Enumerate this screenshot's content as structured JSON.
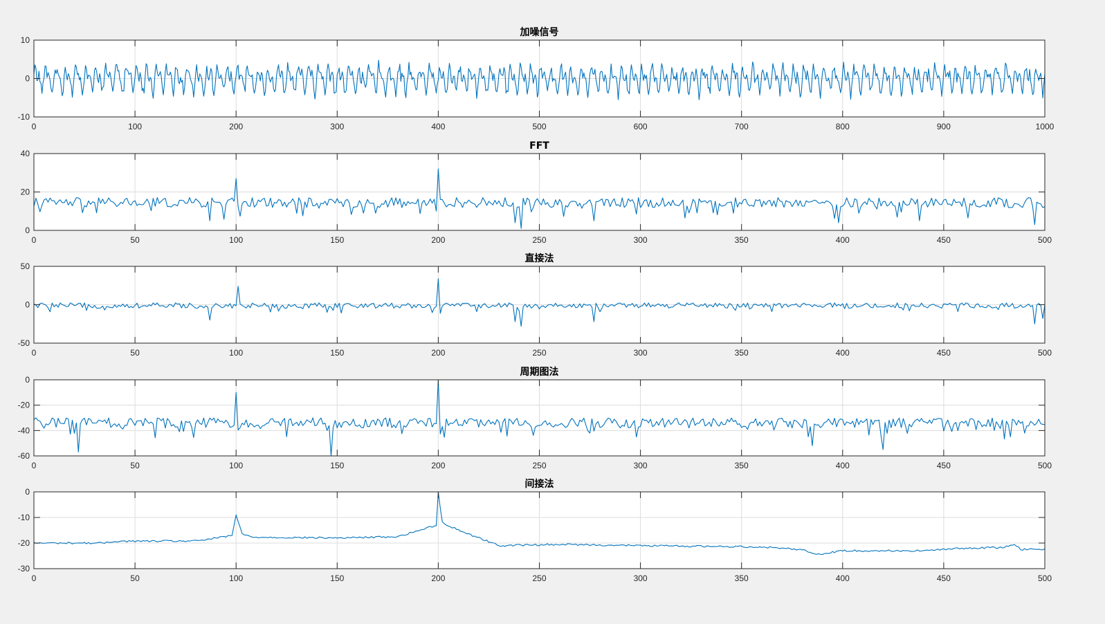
{
  "figure": {
    "background": "#f0f0f0",
    "line_color": "#0072bd"
  },
  "chart_data": [
    {
      "type": "line",
      "title": "加噪信号",
      "xlim": [
        0,
        1000
      ],
      "ylim": [
        -10,
        10
      ],
      "xticks": [
        0,
        100,
        200,
        300,
        400,
        500,
        600,
        700,
        800,
        900,
        1000
      ],
      "yticks": [
        -10,
        0,
        10
      ],
      "grid": true,
      "series": [
        {
          "kind": "noisy_sinusoid",
          "n": 1000,
          "x_range": [
            0,
            1000
          ],
          "amplitude_range": [
            -5.5,
            6
          ]
        }
      ]
    },
    {
      "type": "line",
      "title": "FFT",
      "xlim": [
        0,
        500
      ],
      "ylim": [
        0,
        40
      ],
      "xticks": [
        0,
        50,
        100,
        150,
        200,
        250,
        300,
        350,
        400,
        450,
        500
      ],
      "yticks": [
        0,
        20,
        40
      ],
      "grid": true,
      "series": [
        {
          "kind": "spectrum",
          "n": 500,
          "baseline": 14.5,
          "noise": 2.6,
          "peaks": [
            {
              "x": 100,
              "y": 27
            },
            {
              "x": 200,
              "y": 32
            }
          ],
          "dips": [
            {
              "x": 87,
              "y": 5
            },
            {
              "x": 238,
              "y": 4
            },
            {
              "x": 241,
              "y": 1
            },
            {
              "x": 277,
              "y": 5
            },
            {
              "x": 398,
              "y": 4
            },
            {
              "x": 438,
              "y": 5
            },
            {
              "x": 495,
              "y": 3
            }
          ]
        }
      ]
    },
    {
      "type": "line",
      "title": "直接法",
      "xlim": [
        0,
        500
      ],
      "ylim": [
        -50,
        50
      ],
      "xticks": [
        0,
        50,
        100,
        150,
        200,
        250,
        300,
        350,
        400,
        450,
        500
      ],
      "yticks": [
        -50,
        0,
        50
      ],
      "grid": true,
      "series": [
        {
          "kind": "spectrum",
          "n": 500,
          "baseline": -1,
          "noise": 3.5,
          "peaks": [
            {
              "x": 101,
              "y": 24
            },
            {
              "x": 200,
              "y": 34
            }
          ],
          "dips": [
            {
              "x": 87,
              "y": -20
            },
            {
              "x": 238,
              "y": -22
            },
            {
              "x": 241,
              "y": -28
            },
            {
              "x": 277,
              "y": -22
            },
            {
              "x": 495,
              "y": -25
            },
            {
              "x": 499,
              "y": -18
            }
          ]
        }
      ]
    },
    {
      "type": "line",
      "title": "周期图法",
      "xlim": [
        0,
        500
      ],
      "ylim": [
        -60,
        0
      ],
      "xticks": [
        0,
        50,
        100,
        150,
        200,
        250,
        300,
        350,
        400,
        450,
        500
      ],
      "yticks": [
        -60,
        -40,
        -20,
        0
      ],
      "grid": true,
      "series": [
        {
          "kind": "spectrum",
          "n": 500,
          "baseline": -34,
          "noise": 4,
          "peaks": [
            {
              "x": 100,
              "y": -10
            },
            {
              "x": 200,
              "y": 0
            }
          ],
          "dips": [
            {
              "x": 22,
              "y": -57
            },
            {
              "x": 147,
              "y": -60
            },
            {
              "x": 385,
              "y": -52
            },
            {
              "x": 420,
              "y": -55
            },
            {
              "x": 483,
              "y": -45
            }
          ]
        }
      ]
    },
    {
      "type": "line",
      "title": "间接法",
      "xlim": [
        0,
        500
      ],
      "ylim": [
        -30,
        0
      ],
      "xticks": [
        0,
        50,
        100,
        150,
        200,
        250,
        300,
        350,
        400,
        450,
        500
      ],
      "yticks": [
        -30,
        -20,
        -10,
        0
      ],
      "grid": true,
      "series": [
        {
          "kind": "smooth_spectrum",
          "n": 500,
          "trend": [
            [
              0,
              -20
            ],
            [
              35,
              -20
            ],
            [
              40,
              -19.3
            ],
            [
              80,
              -19.2
            ],
            [
              95,
              -17.5
            ],
            [
              98,
              -17
            ],
            [
              100,
              -9
            ],
            [
              103,
              -16.5
            ],
            [
              108,
              -17.7
            ],
            [
              150,
              -18
            ],
            [
              180,
              -17.5
            ],
            [
              195,
              -14
            ],
            [
              199,
              -13
            ],
            [
              200,
              0
            ],
            [
              202,
              -12
            ],
            [
              206,
              -13.5
            ],
            [
              215,
              -16.5
            ],
            [
              222,
              -18.5
            ],
            [
              230,
              -21
            ],
            [
              260,
              -20.5
            ],
            [
              300,
              -21
            ],
            [
              360,
              -21.5
            ],
            [
              380,
              -22.5
            ],
            [
              387,
              -24.5
            ],
            [
              400,
              -23
            ],
            [
              440,
              -23
            ],
            [
              460,
              -22
            ],
            [
              480,
              -21.7
            ],
            [
              485,
              -20.3
            ],
            [
              488,
              -22.5
            ],
            [
              500,
              -22.3
            ]
          ],
          "noise": 0.35
        }
      ]
    }
  ]
}
